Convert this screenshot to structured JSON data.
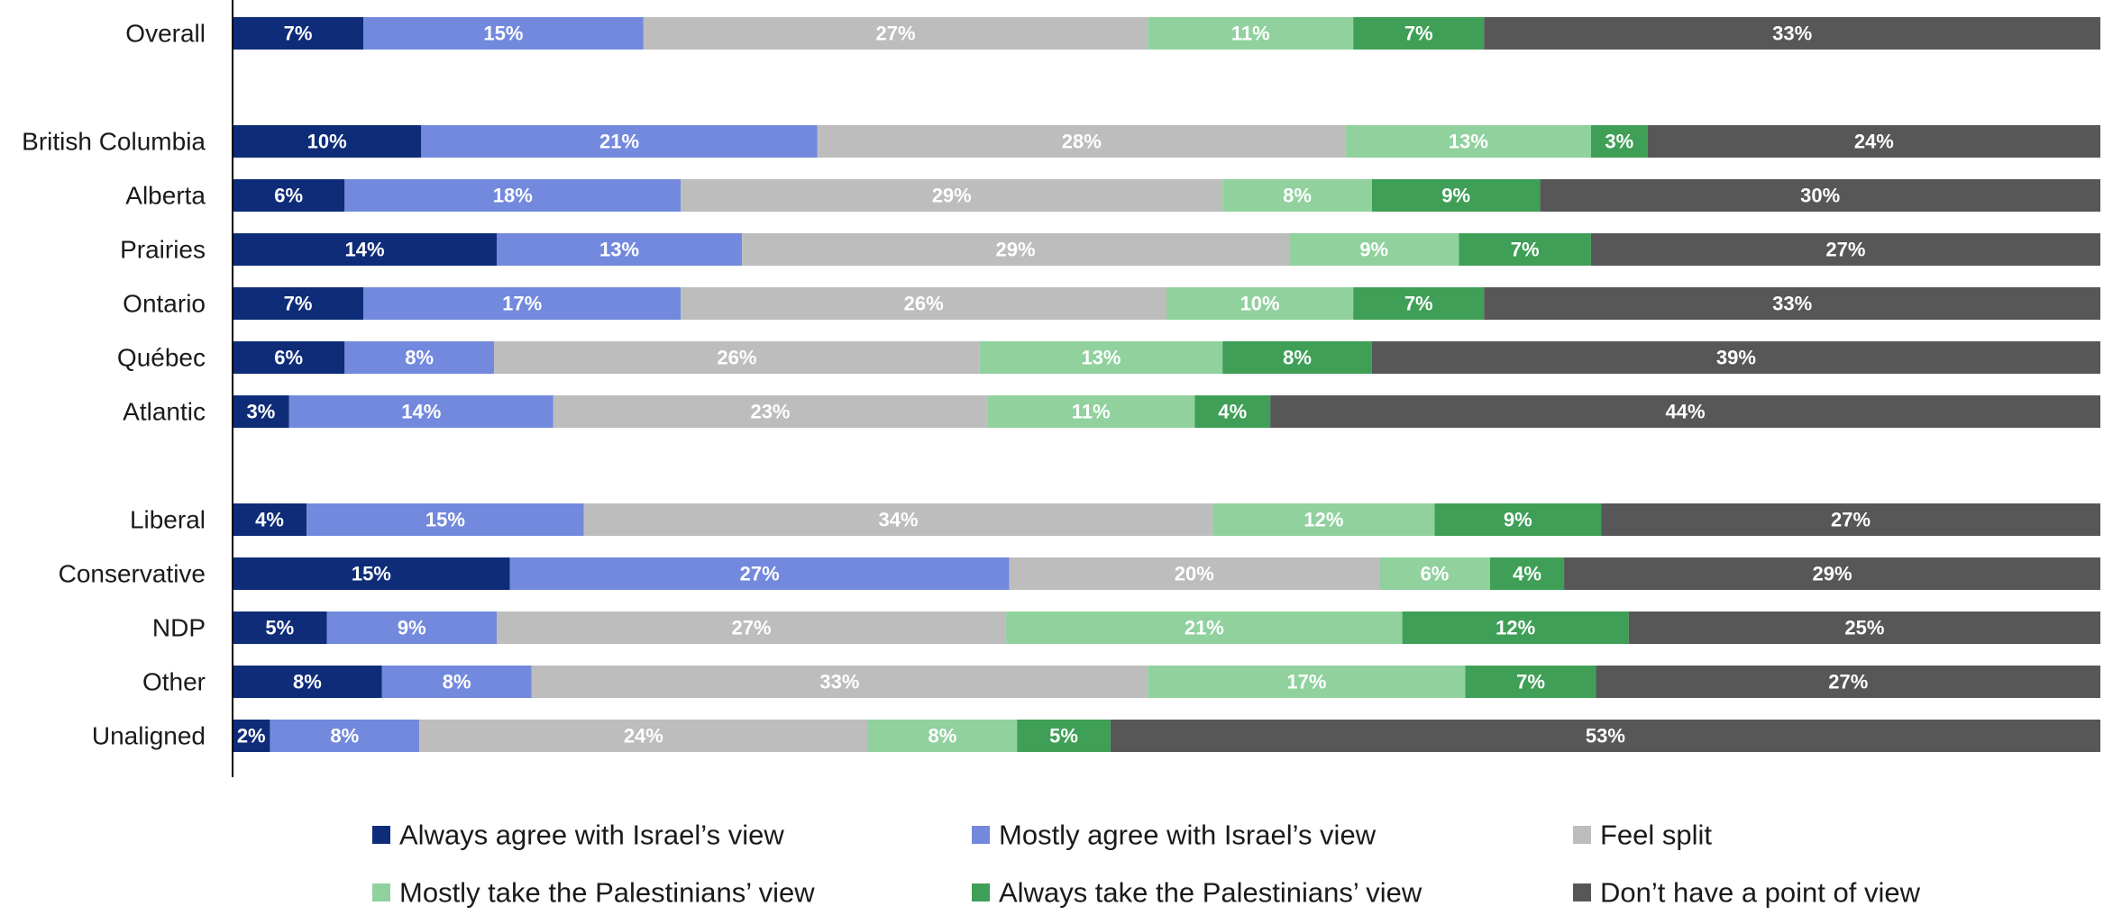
{
  "chart_data": {
    "type": "bar",
    "orientation": "horizontal",
    "stacked": true,
    "title": "",
    "xlabel": "",
    "ylabel": "",
    "xlim": [
      0,
      100
    ],
    "grid": false,
    "legend_position": "bottom",
    "value_suffix": "%",
    "categories": [
      "Overall",
      "",
      "British Columbia",
      "Alberta",
      "Prairies",
      "Ontario",
      "Québec",
      "Atlantic",
      "",
      "Liberal",
      "Conservative",
      "NDP",
      "Other",
      "Unaligned"
    ],
    "series": [
      {
        "name": "Always agree with Israel’s view",
        "color": "#0e2c78",
        "values": [
          7,
          null,
          10,
          6,
          14,
          7,
          6,
          3,
          null,
          4,
          15,
          5,
          8,
          2
        ]
      },
      {
        "name": "Mostly agree with Israel’s view",
        "color": "#7289dd",
        "values": [
          15,
          null,
          21,
          18,
          13,
          17,
          8,
          14,
          null,
          15,
          27,
          9,
          8,
          8
        ]
      },
      {
        "name": "Feel split",
        "color": "#bdbdbd",
        "values": [
          27,
          null,
          28,
          29,
          29,
          26,
          26,
          23,
          null,
          34,
          20,
          27,
          33,
          24
        ]
      },
      {
        "name": "Mostly take the Palestinians’ view",
        "color": "#90d19e",
        "values": [
          11,
          null,
          13,
          8,
          9,
          10,
          13,
          11,
          null,
          12,
          6,
          21,
          17,
          8
        ]
      },
      {
        "name": "Always take the Palestinians’ view",
        "color": "#3f9f57",
        "values": [
          7,
          null,
          3,
          9,
          7,
          7,
          8,
          4,
          null,
          9,
          4,
          12,
          7,
          5
        ]
      },
      {
        "name": "Don’t have a point of view",
        "color": "#575757",
        "values": [
          33,
          null,
          24,
          30,
          27,
          33,
          39,
          44,
          null,
          27,
          29,
          25,
          27,
          53
        ]
      }
    ]
  }
}
